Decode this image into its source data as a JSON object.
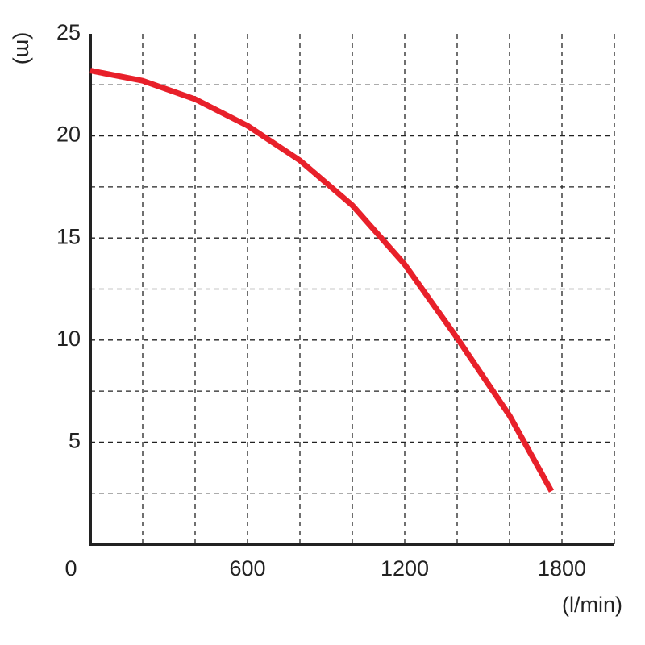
{
  "chart_data": {
    "type": "line",
    "y_label": "(m)",
    "x_label": "(l/min)",
    "x": [
      0,
      200,
      400,
      600,
      800,
      1000,
      1200,
      1400,
      1600,
      1760
    ],
    "series": [
      {
        "color": "#e8202a",
        "values": [
          23.2,
          22.7,
          21.8,
          20.5,
          18.8,
          16.6,
          13.7,
          10.1,
          6.3,
          2.6
        ]
      }
    ],
    "xlim": [
      0,
      2000
    ],
    "ylim": [
      0,
      25
    ],
    "xticks": [
      0,
      600,
      1200,
      1800
    ],
    "yticks": [
      5,
      10,
      15,
      20,
      25
    ],
    "x_grid": [
      200,
      400,
      600,
      800,
      1000,
      1200,
      1400,
      1600,
      1800,
      2000
    ],
    "y_grid": [
      2.5,
      5,
      7.5,
      10,
      12.5,
      15,
      17.5,
      20,
      22.5
    ]
  }
}
